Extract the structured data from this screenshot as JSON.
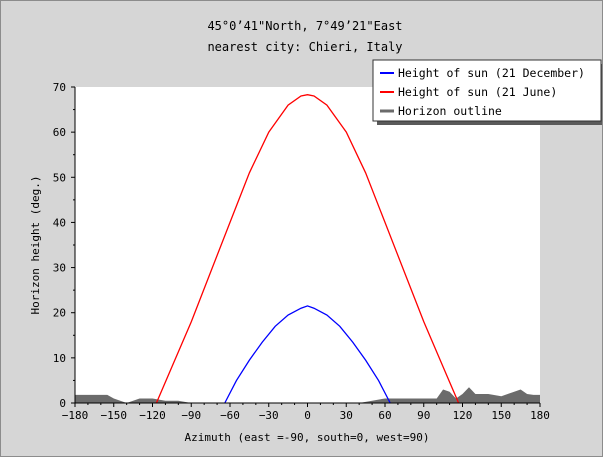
{
  "chart_data": {
    "type": "line",
    "title": "45°0’41\"North, 7°49’21\"East",
    "subtitle": "nearest city: Chieri, Italy",
    "xlabel": "Azimuth (east =-90, south=0, west=90)",
    "ylabel": "Horizon height (deg.)",
    "xlim": [
      -180,
      180
    ],
    "ylim": [
      0,
      70
    ],
    "xticks": [
      -180,
      -150,
      -120,
      -90,
      -60,
      -30,
      0,
      30,
      60,
      90,
      120,
      150,
      180
    ],
    "yticks": [
      0,
      10,
      20,
      30,
      40,
      50,
      60,
      70
    ],
    "grid": false,
    "legend_position": "top-right",
    "series": [
      {
        "name": "Height of sun (21 December)",
        "color": "#0000ff",
        "style": "line",
        "x": [
          -64,
          -55,
          -45,
          -35,
          -25,
          -15,
          -5,
          0,
          5,
          15,
          25,
          35,
          45,
          55,
          64
        ],
        "y": [
          0,
          5,
          9.5,
          13.5,
          17,
          19.5,
          21,
          21.5,
          21,
          19.5,
          17,
          13.5,
          9.5,
          5,
          0
        ]
      },
      {
        "name": "Height of sun (21 June)",
        "color": "#ff0000",
        "style": "line",
        "x": [
          -117,
          -105,
          -90,
          -75,
          -60,
          -45,
          -30,
          -15,
          -5,
          0,
          5,
          15,
          30,
          45,
          60,
          75,
          90,
          105,
          117
        ],
        "y": [
          0,
          8,
          18,
          29,
          40,
          51,
          60,
          66,
          68,
          68.3,
          68,
          66,
          60,
          51,
          40,
          29,
          18,
          8,
          0
        ]
      },
      {
        "name": "Horizon outline",
        "color": "#6b6b6b",
        "style": "area",
        "x": [
          -180,
          -155,
          -150,
          -140,
          -130,
          -120,
          -110,
          -100,
          -90,
          -80,
          -70,
          -60,
          -50,
          -40,
          -30,
          -20,
          -10,
          0,
          10,
          20,
          30,
          40,
          50,
          60,
          70,
          80,
          90,
          100,
          105,
          110,
          115,
          120,
          125,
          130,
          140,
          150,
          155,
          160,
          165,
          170,
          175,
          180
        ],
        "y": [
          1.8,
          1.8,
          1,
          0,
          1,
          1,
          0.5,
          0.5,
          0,
          0,
          0,
          0,
          0,
          0,
          0,
          0,
          0,
          0,
          0,
          0,
          0,
          0,
          0.5,
          1,
          1,
          1,
          1,
          1,
          3,
          2.5,
          1,
          2,
          3.5,
          2,
          2,
          1.5,
          2,
          2.5,
          3,
          2,
          1.8,
          1.8
        ]
      }
    ]
  }
}
